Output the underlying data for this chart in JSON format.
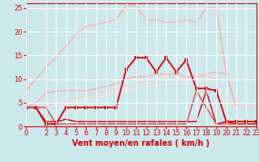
{
  "bg_color": "#cce8ec",
  "grid_color": "#ffffff",
  "xlabel": "Vent moyen/en rafales ( km/h )",
  "xlabel_color": "#cc0000",
  "xlabel_fontsize": 7,
  "tick_color": "#cc0000",
  "tick_fontsize": 6,
  "xlim": [
    0,
    23
  ],
  "ylim": [
    0,
    26
  ],
  "yticks": [
    0,
    5,
    10,
    15,
    20,
    25
  ],
  "xticks": [
    0,
    2,
    3,
    4,
    5,
    6,
    7,
    8,
    9,
    10,
    11,
    12,
    13,
    14,
    15,
    16,
    17,
    18,
    19,
    20,
    21,
    22,
    23
  ],
  "lines": [
    {
      "x": [
        0,
        1,
        2,
        3,
        4,
        5,
        6,
        7,
        8,
        9,
        10,
        11,
        12,
        13,
        14,
        15,
        16,
        17,
        18,
        19,
        20,
        21,
        22,
        23
      ],
      "y": [
        7.5,
        10,
        12.5,
        14.5,
        17,
        19.5,
        21,
        21.5,
        22,
        22.5,
        25.5,
        25.5,
        22.5,
        22.5,
        22,
        22,
        22.5,
        22,
        25,
        25,
        11,
        4,
        4,
        4
      ],
      "color": "#ffaaaa",
      "lw": 1.0,
      "marker": "s",
      "ms": 2.0
    },
    {
      "x": [
        0,
        1,
        2,
        3,
        4,
        5,
        6,
        7,
        8,
        9,
        10,
        11,
        12,
        13,
        14,
        15,
        16,
        17,
        18,
        19,
        20,
        21,
        22,
        23
      ],
      "y": [
        4,
        5,
        7,
        7.5,
        7.5,
        7.5,
        7.5,
        8,
        8.5,
        9,
        10,
        10.5,
        10.5,
        11,
        11,
        11,
        10.5,
        10.5,
        11,
        11.5,
        11,
        4,
        4,
        4
      ],
      "color": "#ffaaaa",
      "lw": 1.0,
      "marker": "s",
      "ms": 2.0
    },
    {
      "x": [
        0,
        1,
        2,
        3,
        4,
        5,
        6,
        7,
        8,
        9,
        10,
        11,
        12,
        13,
        14,
        15,
        16,
        17,
        18,
        19,
        20,
        21,
        22,
        23
      ],
      "y": [
        4,
        4.2,
        4.5,
        5,
        5.5,
        6,
        6.5,
        7,
        7.5,
        8,
        8.5,
        9,
        9.5,
        9.5,
        10,
        10,
        10,
        10.5,
        10.5,
        10,
        4.5,
        4,
        4,
        4
      ],
      "color": "#ffcccc",
      "lw": 0.9,
      "marker": "s",
      "ms": 1.8
    },
    {
      "x": [
        0,
        1,
        2,
        3,
        4,
        5,
        6,
        7,
        8,
        9,
        10,
        11,
        12,
        13,
        14,
        15,
        16,
        17,
        18,
        19,
        20,
        21,
        22,
        23
      ],
      "y": [
        4,
        4,
        4,
        4.2,
        4.5,
        5,
        5.5,
        6,
        6.5,
        7,
        7.5,
        8,
        8.5,
        8.5,
        9,
        9,
        9,
        9.5,
        9.5,
        9,
        4.5,
        4,
        4,
        4
      ],
      "color": "#ffdddd",
      "lw": 0.9,
      "marker": "s",
      "ms": 1.8
    },
    {
      "x": [
        0,
        1,
        2,
        3,
        4,
        5,
        6,
        7,
        8,
        9,
        10,
        11,
        12,
        13,
        14,
        15,
        16,
        17,
        18,
        19,
        20,
        21,
        22,
        23
      ],
      "y": [
        4,
        4,
        0.5,
        0.5,
        4,
        4,
        4,
        4,
        4,
        4,
        12,
        14.5,
        14.5,
        11.5,
        14.5,
        11.5,
        14,
        8,
        8,
        7.5,
        1,
        1,
        1,
        1
      ],
      "color": "#cc0000",
      "lw": 1.3,
      "marker": "s",
      "ms": 2.5
    },
    {
      "x": [
        0,
        1,
        2,
        3,
        4,
        5,
        6,
        7,
        8,
        9,
        10,
        11,
        12,
        13,
        14,
        15,
        16,
        17,
        18,
        19,
        20,
        21,
        22,
        23
      ],
      "y": [
        4,
        4,
        1,
        1,
        1.5,
        1,
        1,
        1,
        1,
        1,
        1,
        1,
        1,
        1,
        1,
        1,
        1,
        1,
        7.5,
        0.5,
        1,
        0.5,
        0.5,
        0.5
      ],
      "color": "#cc0000",
      "lw": 1.0,
      "marker": "s",
      "ms": 2.0
    },
    {
      "x": [
        0,
        1,
        2,
        3,
        4,
        5,
        6,
        7,
        8,
        9,
        10,
        11,
        12,
        13,
        14,
        15,
        16,
        17,
        18,
        19,
        20,
        21,
        22,
        23
      ],
      "y": [
        4,
        4,
        4,
        0.5,
        0.5,
        0.5,
        0.5,
        0.5,
        0.5,
        0.5,
        0.5,
        0.5,
        0.5,
        0.5,
        0.5,
        0.5,
        0.5,
        7.5,
        4,
        0.5,
        0.5,
        0.5,
        0.5,
        0.5
      ],
      "color": "#dd4444",
      "lw": 1.0,
      "marker": "s",
      "ms": 2.0
    }
  ]
}
